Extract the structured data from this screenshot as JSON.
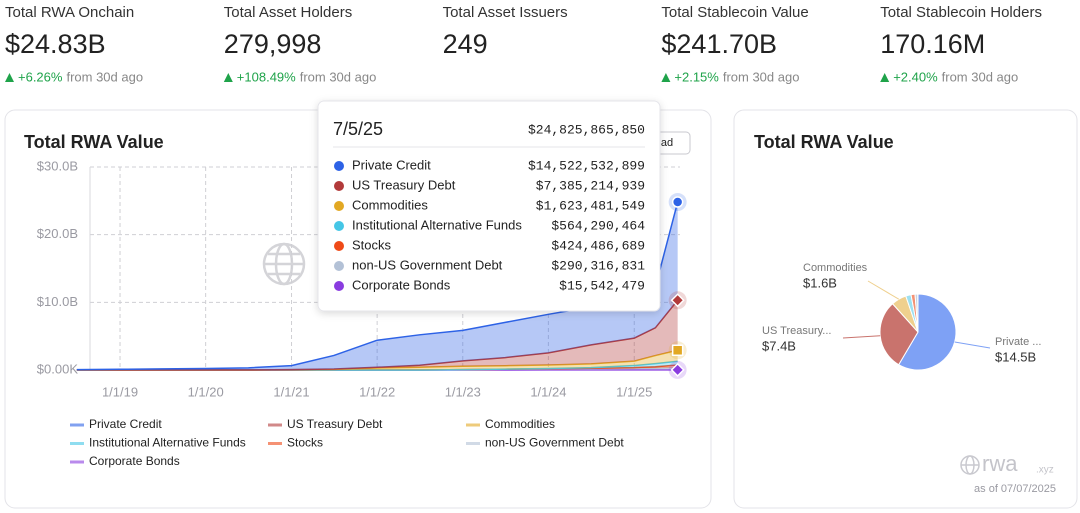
{
  "stats": [
    {
      "label": "Total RWA Onchain",
      "value": "$24.83B",
      "change": "+6.26%",
      "note": "from 30d ago"
    },
    {
      "label": "Total Asset Holders",
      "value": "279,998",
      "change": "+108.49%",
      "note": "from 30d ago"
    },
    {
      "label": "Total Asset Issuers",
      "value": "249"
    },
    {
      "label": "Total Stablecoin Value",
      "value": "$241.70B",
      "change": "+2.15%",
      "note": "from 30d ago"
    },
    {
      "label": "Total Stablecoin Holders",
      "value": "170.16M",
      "change": "+2.40%",
      "note": "from 30d ago"
    }
  ],
  "button_fragment": "ad",
  "footer": {
    "brand": "rwa",
    "brand_suffix": ".xyz",
    "as_of": "as of 07/07/2025"
  },
  "chart_data": [
    {
      "type": "area",
      "title": "Total RWA Value",
      "stacked": true,
      "grid": true,
      "x": [
        "7/1/18",
        "1/1/19",
        "7/1/19",
        "1/1/20",
        "7/1/20",
        "1/1/21",
        "7/1/21",
        "1/1/22",
        "7/1/22",
        "1/1/23",
        "7/1/23",
        "1/1/24",
        "7/1/24",
        "1/1/25",
        "4/1/25",
        "7/5/25"
      ],
      "xlim": [
        "8/26/18",
        "7/15/25"
      ],
      "xticks": [
        "1/1/19",
        "1/1/20",
        "1/1/21",
        "1/1/22",
        "1/1/23",
        "1/1/24",
        "1/1/25"
      ],
      "ylim": [
        0,
        30000000000
      ],
      "yticks": [
        {
          "value": 0,
          "label": "$0.00K"
        },
        {
          "value": 10000000000,
          "label": "$10.0B"
        },
        {
          "value": 20000000000,
          "label": "$20.0B"
        },
        {
          "value": 30000000000,
          "label": "$30.0B"
        }
      ],
      "tooltip": {
        "total": {
          "value": 24825865850,
          "label": "$24,825,865,850"
        }
      },
      "series": [
        {
          "name": "Private Credit",
          "color": "#2d62e6",
          "values": [
            50000000,
            100000000,
            150000000,
            200000000,
            300000000,
            600000000,
            2000000000,
            4000000000,
            4500000000,
            4500000000,
            5200000000,
            5700000000,
            5600000000,
            5500000000,
            6000000000,
            14522532899
          ],
          "value_labels": [
            null,
            null,
            null,
            null,
            null,
            null,
            null,
            null,
            null,
            null,
            null,
            null,
            null,
            null,
            null,
            "$14,522,532,899"
          ]
        },
        {
          "name": "US Treasury Debt",
          "color": "#b23a3a",
          "values": [
            0,
            0,
            0,
            0,
            0,
            0,
            50000000,
            100000000,
            300000000,
            800000000,
            1200000000,
            1800000000,
            2800000000,
            3400000000,
            4100000000,
            7385214939
          ],
          "value_labels": [
            null,
            null,
            null,
            null,
            null,
            null,
            null,
            null,
            null,
            null,
            null,
            null,
            null,
            null,
            null,
            "$7,385,214,939"
          ]
        },
        {
          "name": "Commodities",
          "color": "#e2a823",
          "values": [
            10000000,
            10000000,
            10000000,
            20000000,
            20000000,
            50000000,
            100000000,
            300000000,
            400000000,
            500000000,
            500000000,
            500000000,
            550000000,
            650000000,
            1200000000,
            1623481549
          ],
          "value_labels": [
            null,
            null,
            null,
            null,
            null,
            null,
            null,
            null,
            null,
            null,
            null,
            null,
            null,
            null,
            null,
            "$1,623,481,549"
          ]
        },
        {
          "name": "Institutional Alternative Funds",
          "color": "#45c6e6",
          "values": [
            0,
            0,
            0,
            0,
            0,
            0,
            0,
            0,
            0,
            0,
            20000000,
            50000000,
            100000000,
            300000000,
            450000000,
            564290464
          ],
          "value_labels": [
            null,
            null,
            null,
            null,
            null,
            null,
            null,
            null,
            null,
            null,
            null,
            null,
            null,
            null,
            null,
            "$564,290,464"
          ]
        },
        {
          "name": "Stocks",
          "color": "#ef4a18",
          "values": [
            0,
            0,
            0,
            0,
            0,
            0,
            0,
            0,
            0,
            0,
            10000000,
            20000000,
            50000000,
            100000000,
            200000000,
            424486689
          ],
          "value_labels": [
            null,
            null,
            null,
            null,
            null,
            null,
            null,
            null,
            null,
            null,
            null,
            null,
            null,
            null,
            null,
            "$424,486,689"
          ]
        },
        {
          "name": "non-US Government Debt",
          "color": "#b3c1d6",
          "values": [
            0,
            0,
            0,
            0,
            0,
            0,
            0,
            0,
            0,
            50000000,
            100000000,
            150000000,
            200000000,
            250000000,
            270000000,
            290316831
          ],
          "value_labels": [
            null,
            null,
            null,
            null,
            null,
            null,
            null,
            null,
            null,
            null,
            null,
            null,
            null,
            null,
            null,
            "$290,316,831"
          ]
        },
        {
          "name": "Corporate Bonds",
          "color": "#8a3ce0",
          "values": [
            0,
            0,
            0,
            0,
            0,
            0,
            0,
            0,
            0,
            0,
            5000000,
            10000000,
            10000000,
            10000000,
            15000000,
            15542479
          ],
          "value_labels": [
            null,
            null,
            null,
            null,
            null,
            null,
            null,
            null,
            null,
            null,
            null,
            null,
            null,
            null,
            null,
            "$15,542,479"
          ]
        }
      ]
    },
    {
      "type": "pie",
      "title": "Total RWA Value",
      "categories": [
        "Private ...",
        "US Treasury...",
        "Commodities",
        null,
        null,
        null,
        null
      ],
      "values": [
        14.5,
        7.4,
        1.6,
        0.56,
        0.42,
        0.29,
        0.02
      ],
      "value_labels": [
        "$14.5B",
        "$7.4B",
        "$1.6B",
        null,
        null,
        null,
        null
      ],
      "colors": [
        "#7ea1f5",
        "#c9736d",
        "#efd08e",
        "#9de0f0",
        "#f49274",
        "#c9d2df",
        "#b98de8"
      ]
    }
  ]
}
